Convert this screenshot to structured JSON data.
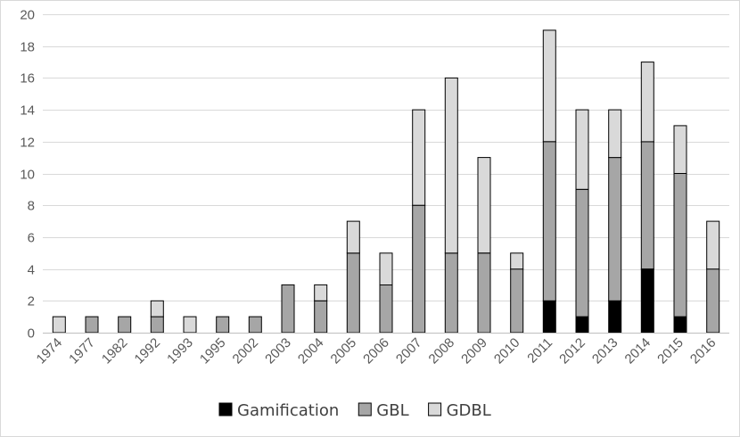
{
  "chart_data": {
    "type": "bar",
    "stacked": true,
    "title": "",
    "xlabel": "",
    "ylabel": "",
    "ylim": [
      0,
      20
    ],
    "ytick_step": 2,
    "grid": true,
    "legend_position": "bottom",
    "categories": [
      "1974",
      "1977",
      "1982",
      "1992",
      "1993",
      "1995",
      "2002",
      "2003",
      "2004",
      "2005",
      "2006",
      "2007",
      "2008",
      "2009",
      "2010",
      "2011",
      "2012",
      "2013",
      "2014",
      "2015",
      "2016"
    ],
    "series": [
      {
        "name": "Gamification",
        "color": "#000000",
        "values": [
          0,
          0,
          0,
          0,
          0,
          0,
          0,
          0,
          0,
          0,
          0,
          0,
          0,
          0,
          0,
          2,
          1,
          2,
          4,
          1,
          0
        ]
      },
      {
        "name": "GBL",
        "color": "#a6a6a6",
        "values": [
          0,
          1,
          1,
          1,
          0,
          1,
          1,
          3,
          2,
          5,
          3,
          8,
          5,
          5,
          4,
          10,
          8,
          9,
          8,
          9,
          4
        ]
      },
      {
        "name": "GDBL",
        "color": "#d9d9d9",
        "values": [
          1,
          0,
          0,
          1,
          1,
          0,
          0,
          0,
          1,
          2,
          2,
          6,
          11,
          6,
          1,
          7,
          5,
          3,
          5,
          3,
          3
        ]
      }
    ]
  }
}
